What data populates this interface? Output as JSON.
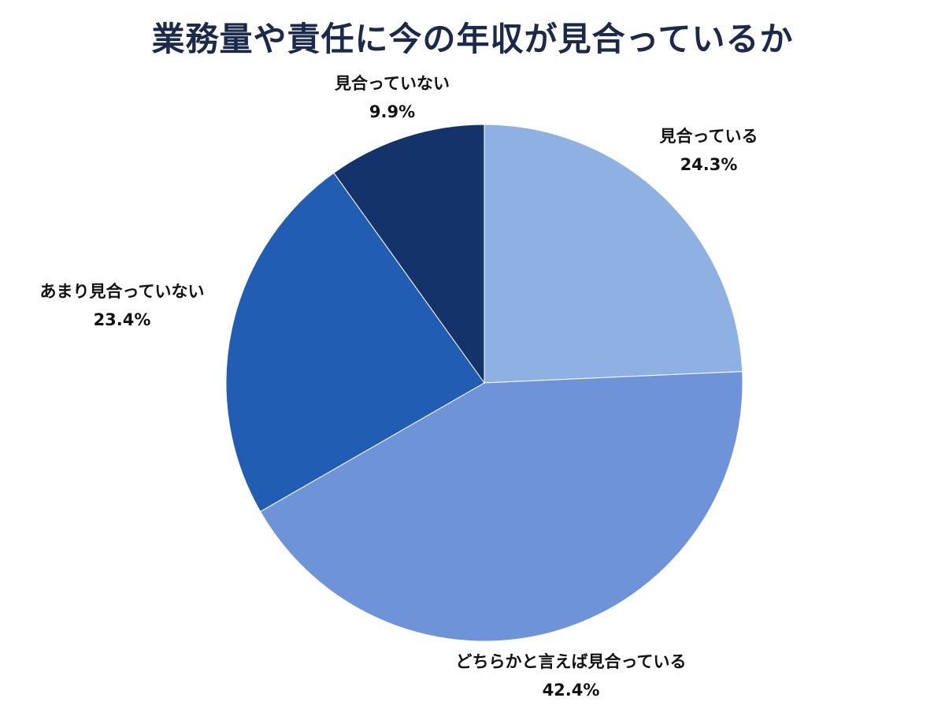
{
  "chart_data": {
    "type": "pie",
    "title": "業務量や責任に今の年収が見合っているか",
    "slices": [
      {
        "label": "見合っている",
        "value": 24.3,
        "value_text": "24.3%",
        "color": "#8fb0e3"
      },
      {
        "label": "どちらかと言えば見合っている",
        "value": 42.4,
        "value_text": "42.4%",
        "color": "#6e93d8"
      },
      {
        "label": "あまり見合っていない",
        "value": 23.4,
        "value_text": "23.4%",
        "color": "#215db3"
      },
      {
        "label": "見合っていない",
        "value": 9.9,
        "value_text": "9.9%",
        "color": "#14336a"
      }
    ],
    "start_angle": "12 o'clock",
    "direction": "clockwise",
    "legend": "none"
  }
}
